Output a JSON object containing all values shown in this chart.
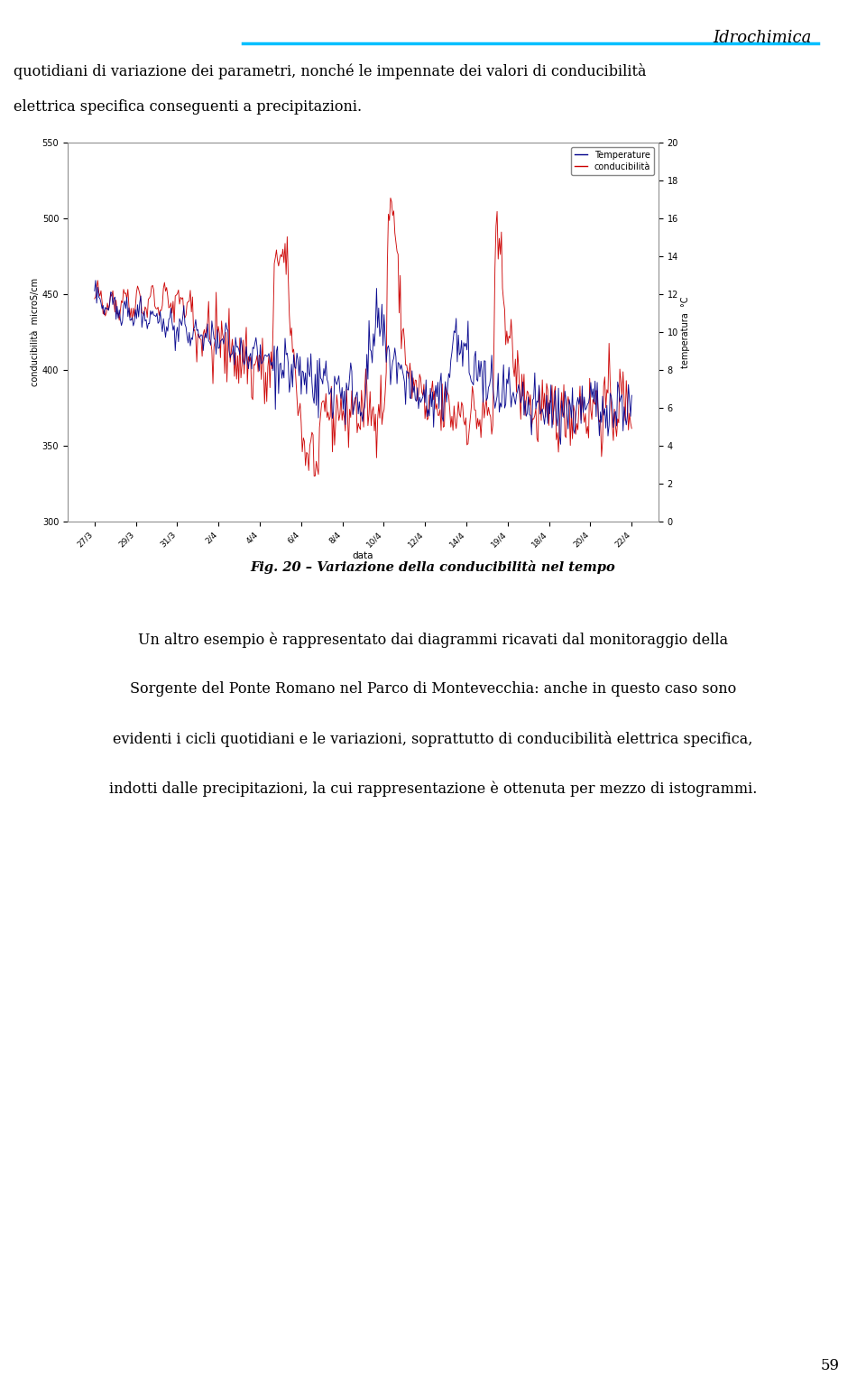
{
  "title_header": "Idrochimica",
  "header_line_color": "#00BFFF",
  "page_number": "59",
  "text_above": "quotidiani di variazione dei parametri, nonché le impennate dei valori di conducibilità elettrica specifica conseguenti a precipitazioni.",
  "fig_caption": "Fig. 20 – Variazione della conducibilità nel tempo",
  "body_text_lines": [
    "Un altro esempio è rappresentato dai diagrammi ricavati dal monitoraggio della",
    "Sorgente del Ponte Romano nel Parco di Montevecchia: anche in questo caso sono",
    "evidenti i cicli quotidiani e le variazioni, soprattutto di conducibilità elettrica specifica,",
    "indotti dalle precipitazioni, la cui rappresentazione è ottenuta per mezzo di istogrammi."
  ],
  "cond_ylim": [
    300,
    550
  ],
  "cond_yticks": [
    300,
    350,
    400,
    450,
    500,
    550
  ],
  "temp_ylim": [
    0,
    20
  ],
  "temp_yticks": [
    0,
    2,
    4,
    6,
    8,
    10,
    12,
    14,
    16,
    18,
    20
  ],
  "xlabel": "data",
  "ylabel_left": "conducibilità  microS/cm",
  "ylabel_right": "temperatura  °C",
  "legend_entries": [
    "Temperature",
    "conducibilità"
  ],
  "legend_colors": [
    "#00008B",
    "#CC0000"
  ],
  "x_tick_labels": [
    "27/3",
    "29/3",
    "31/3",
    "2/4",
    "4/4",
    "6/4",
    "8/4",
    "10/4",
    "12/4",
    "14/4",
    "19/4",
    "18/4",
    "20/4",
    "22/4"
  ],
  "bg_color": "#FFFFFF",
  "cond_color": "#CC0000",
  "temp_color": "#00008B",
  "page_box_color": "#D0D0D0"
}
